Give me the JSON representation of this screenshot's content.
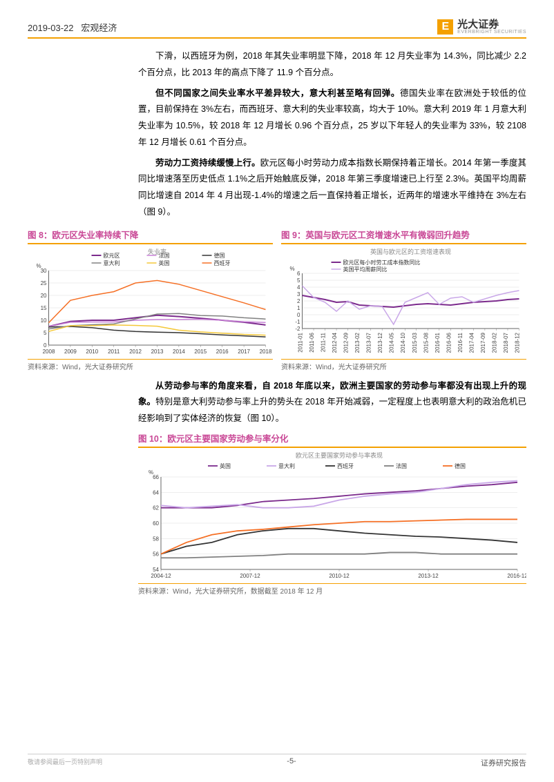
{
  "header": {
    "date": "2019-03-22",
    "category": "宏观经济",
    "logo_main": "光大证券",
    "logo_sub": "EVERBRIGHT SECURITIES"
  },
  "para1": "下滑，以西班牙为例，2018 年其失业率明显下降，2018 年 12 月失业率为 14.3%，同比减少 2.2 个百分点，比 2013 年的高点下降了 11.9 个百分点。",
  "para2_lead": "但不同国家之间失业率水平差异较大，意大利甚至略有回弹。",
  "para2_rest": "德国失业率在欧洲处于较低的位置，目前保持在 3%左右，而西班牙、意大利的失业率较高，均大于 10%。意大利 2019 年 1 月意大利失业率为 10.5%，较 2018 年 12 月增长 0.96 个百分点，25 岁以下年轻人的失业率为 33%，较 2108 年 12 月增长 0.61 个百分点。",
  "para3_lead": "劳动力工资持续缓慢上行。",
  "para3_rest": "欧元区每小时劳动力成本指数长期保持着正增长。2014 年第一季度其同比增速落至历史低点 1.1%之后开始触底反弹，2018 年第三季度增速已上行至 2.3%。英国平均周薪同比增速自 2014 年 4 月出现-1.4%的增速之后一直保持着正增长，近两年的增速水平维持在 3%左右（图 9）。",
  "para4_lead": "从劳动参与率的角度来看，自 2018 年底以来，欧洲主要国家的劳动参与率都没有出现上升的现象。",
  "para4_rest": "特别是意大利劳动参与率上升的势头在 2018 年开始减弱，一定程度上也表明意大利的政治危机已经影响到了实体经济的恢复（图 10）。",
  "fig8": {
    "title": "图 8：欧元区失业率持续下降",
    "inner_title": "失业率",
    "ylabel": "%",
    "ylim": [
      0,
      30
    ],
    "ytick_step": 5,
    "x_years": [
      "2008",
      "2009",
      "2010",
      "2011",
      "2012",
      "2013",
      "2014",
      "2015",
      "2016",
      "2017",
      "2018"
    ],
    "series": [
      {
        "name": "欧元区",
        "color": "#7b2a8c",
        "width": 2,
        "data": [
          7.5,
          9.5,
          10,
          10,
          11,
          12,
          11.5,
          10.8,
          10,
          9.2,
          8.1
        ]
      },
      {
        "name": "法国",
        "color": "#c77fd6",
        "width": 1.5,
        "data": [
          7.5,
          9.2,
          9.3,
          9.3,
          10,
          10.3,
          10.3,
          10.4,
          10,
          9.4,
          9.1
        ]
      },
      {
        "name": "德国",
        "color": "#333333",
        "width": 1.5,
        "data": [
          7.3,
          7.5,
          7,
          6,
          5.5,
          5.2,
          5,
          4.6,
          4.1,
          3.7,
          3.3
        ]
      },
      {
        "name": "意大利",
        "color": "#808080",
        "width": 1.5,
        "data": [
          6.5,
          7.8,
          8.2,
          8.5,
          10.5,
          12.5,
          12.7,
          11.9,
          11.7,
          11,
          10.5
        ]
      },
      {
        "name": "英国",
        "color": "#f4c838",
        "width": 1.5,
        "data": [
          5.5,
          7.8,
          7.8,
          8.1,
          7.9,
          7.6,
          6,
          5.3,
          4.8,
          4.3,
          4
        ]
      },
      {
        "name": "西班牙",
        "color": "#f56f24",
        "width": 1.5,
        "data": [
          9,
          18,
          20,
          21.5,
          25,
          26,
          24.5,
          22,
          19.5,
          17,
          14.3
        ]
      }
    ],
    "src": "资料来源：Wind，光大证券研究所",
    "bg": "#ffffff",
    "grid_color": "#dddddd"
  },
  "fig9": {
    "title": "图 9：英国与欧元区工资增速水平有微弱回升趋势",
    "inner_title": "英国与欧元区的工资增速表现",
    "ylabel": "%",
    "ylim": [
      -2,
      6
    ],
    "ytick_step": 1,
    "x_labels": [
      "2011-01",
      "2011-06",
      "2011-11",
      "2012-04",
      "2012-09",
      "2013-02",
      "2013-07",
      "2013-12",
      "2014-05",
      "2014-10",
      "2015-03",
      "2015-08",
      "2016-01",
      "2016-06",
      "2016-11",
      "2017-04",
      "2017-09",
      "2018-02",
      "2018-07",
      "2018-12"
    ],
    "series": [
      {
        "name": "欧元区每小时劳工成本指数同比",
        "color": "#7b2a8c",
        "width": 2,
        "data": [
          2.8,
          2.5,
          2.2,
          1.8,
          1.9,
          1.4,
          1.3,
          1.2,
          1.1,
          1.3,
          1.5,
          1.6,
          1.5,
          1.4,
          1.6,
          1.8,
          1.9,
          2.0,
          2.2,
          2.3
        ]
      },
      {
        "name": "英国平均周薪同比",
        "color": "#c9a7e8",
        "width": 1.5,
        "data": [
          4.2,
          2.5,
          1.8,
          0.5,
          2,
          0.8,
          1.3,
          1.2,
          -1.4,
          1.8,
          2.5,
          3.2,
          1.5,
          2.4,
          2.6,
          1.8,
          2.3,
          2.8,
          3.2,
          3.5
        ]
      }
    ],
    "src": "资料来源：Wind，光大证券研究所",
    "bg": "#ffffff",
    "grid_color": "#dddddd"
  },
  "fig10": {
    "title": "图 10：欧元区主要国家劳动参与率分化",
    "inner_title": "欧元区主要国家劳动参与率表现",
    "ylabel": "%",
    "ylim": [
      54,
      66
    ],
    "ytick_step": 2,
    "x_labels": [
      "2004-12",
      "2007-12",
      "2010-12",
      "2013-12",
      "2016-12"
    ],
    "series": [
      {
        "name": "英国",
        "color": "#7b2a8c",
        "width": 1.8,
        "data": [
          62,
          62,
          62,
          62.3,
          62.8,
          63,
          63.2,
          63.5,
          63.8,
          64,
          64.2,
          64.5,
          64.8,
          65,
          65.3
        ]
      },
      {
        "name": "意大利",
        "color": "#c9a7e8",
        "width": 1.8,
        "data": [
          62.3,
          62,
          62.2,
          62.4,
          62,
          62,
          62.2,
          63,
          63.5,
          63.8,
          64,
          64.5,
          65,
          65.3,
          65.5
        ]
      },
      {
        "name": "西班牙",
        "color": "#333333",
        "width": 1.8,
        "data": [
          56,
          57,
          57.5,
          58.5,
          59,
          59.3,
          59.3,
          59,
          58.7,
          58.5,
          58.3,
          58.2,
          58,
          57.8,
          57.5
        ]
      },
      {
        "name": "法国",
        "color": "#808080",
        "width": 1.8,
        "data": [
          55.5,
          55.5,
          55.6,
          55.7,
          55.8,
          56,
          56,
          56,
          56,
          56.2,
          56.2,
          56,
          56,
          56,
          56
        ]
      },
      {
        "name": "德国",
        "color": "#f56f24",
        "width": 1.8,
        "data": [
          56,
          57.5,
          58.5,
          59,
          59.2,
          59.5,
          59.8,
          60,
          60.2,
          60.2,
          60.3,
          60.4,
          60.5,
          60.5,
          60.5
        ]
      }
    ],
    "src": "资料来源：Wind，光大证券研究所，数据截至 2018 年 12 月",
    "bg": "#ffffff",
    "grid_color": "#dddddd"
  },
  "footer": {
    "left": "敬请参阅最后一页特别声明",
    "center": "-5-",
    "right": "证券研究报告"
  }
}
